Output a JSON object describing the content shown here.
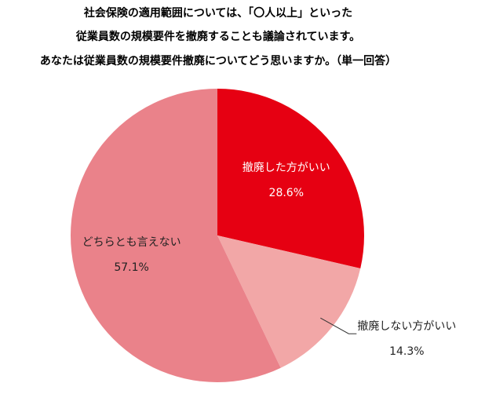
{
  "chart_data": {
    "type": "pie",
    "title": [
      "社会保険の適用範囲については、「〇人以上」といった",
      "従業員数の規模要件を撤廃することも議論されています。",
      "あなたは従業員数の規模要件撤廃についてどう思いますか。（単一回答）"
    ],
    "categories": [
      "撤廃した方がいい",
      "撤廃しない方がいい",
      "どちらとも言えない"
    ],
    "values": [
      28.6,
      14.3,
      57.1
    ],
    "value_labels": [
      "28.6%",
      "14.3%",
      "57.1%"
    ],
    "colors": [
      "#e60012",
      "#f2a7a7",
      "#ea828a"
    ]
  }
}
